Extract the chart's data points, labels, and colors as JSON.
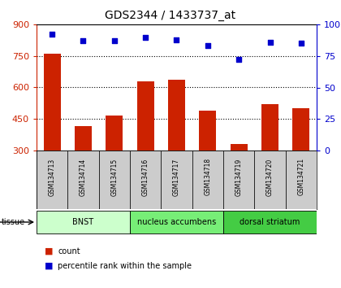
{
  "title": "GDS2344 / 1433737_at",
  "samples": [
    "GSM134713",
    "GSM134714",
    "GSM134715",
    "GSM134716",
    "GSM134717",
    "GSM134718",
    "GSM134719",
    "GSM134720",
    "GSM134721"
  ],
  "counts": [
    760,
    415,
    465,
    630,
    635,
    490,
    330,
    520,
    500
  ],
  "percentiles": [
    92,
    87,
    87,
    90,
    88,
    83,
    72,
    86,
    85
  ],
  "ylim_left": [
    300,
    900
  ],
  "ylim_right": [
    0,
    100
  ],
  "yticks_left": [
    300,
    450,
    600,
    750,
    900
  ],
  "yticks_right": [
    0,
    25,
    50,
    75,
    100
  ],
  "bar_color": "#cc2200",
  "dot_color": "#0000cc",
  "bar_bottom": 300,
  "groups": [
    {
      "label": "BNST",
      "start": 0,
      "end": 3,
      "color": "#ccffcc"
    },
    {
      "label": "nucleus accumbens",
      "start": 3,
      "end": 6,
      "color": "#77ee77"
    },
    {
      "label": "dorsal striatum",
      "start": 6,
      "end": 9,
      "color": "#44cc44"
    }
  ],
  "tissue_label": "tissue",
  "legend_count_label": "count",
  "legend_pct_label": "percentile rank within the sample",
  "grid_dotted_at": [
    450,
    600,
    750
  ],
  "xlabel_bg_color": "#cccccc",
  "title_color": "#000000",
  "title_fontsize": 10
}
